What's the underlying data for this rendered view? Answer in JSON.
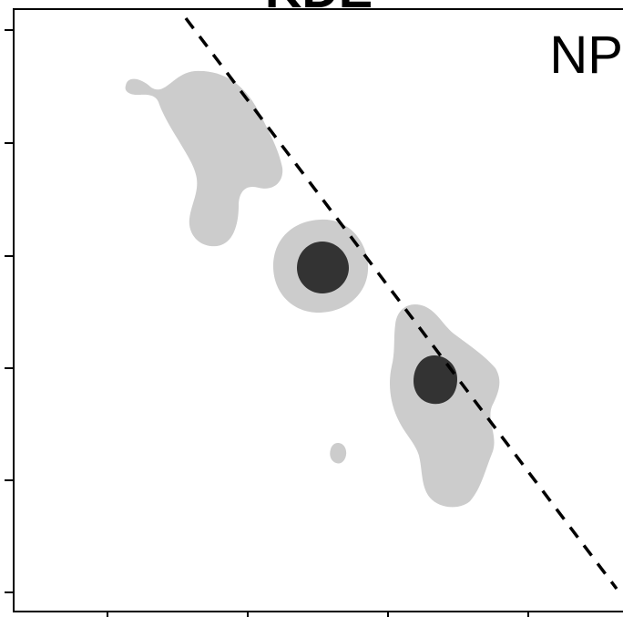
{
  "chart_data": {
    "type": "contour",
    "title": "KDE",
    "panel_label": "NP",
    "reference_line": {
      "style": "dashed",
      "color": "#000000"
    },
    "colors": {
      "outer_level": "#cccccc",
      "inner_level": "#333333",
      "frame": "#000000"
    },
    "grid": false
  }
}
